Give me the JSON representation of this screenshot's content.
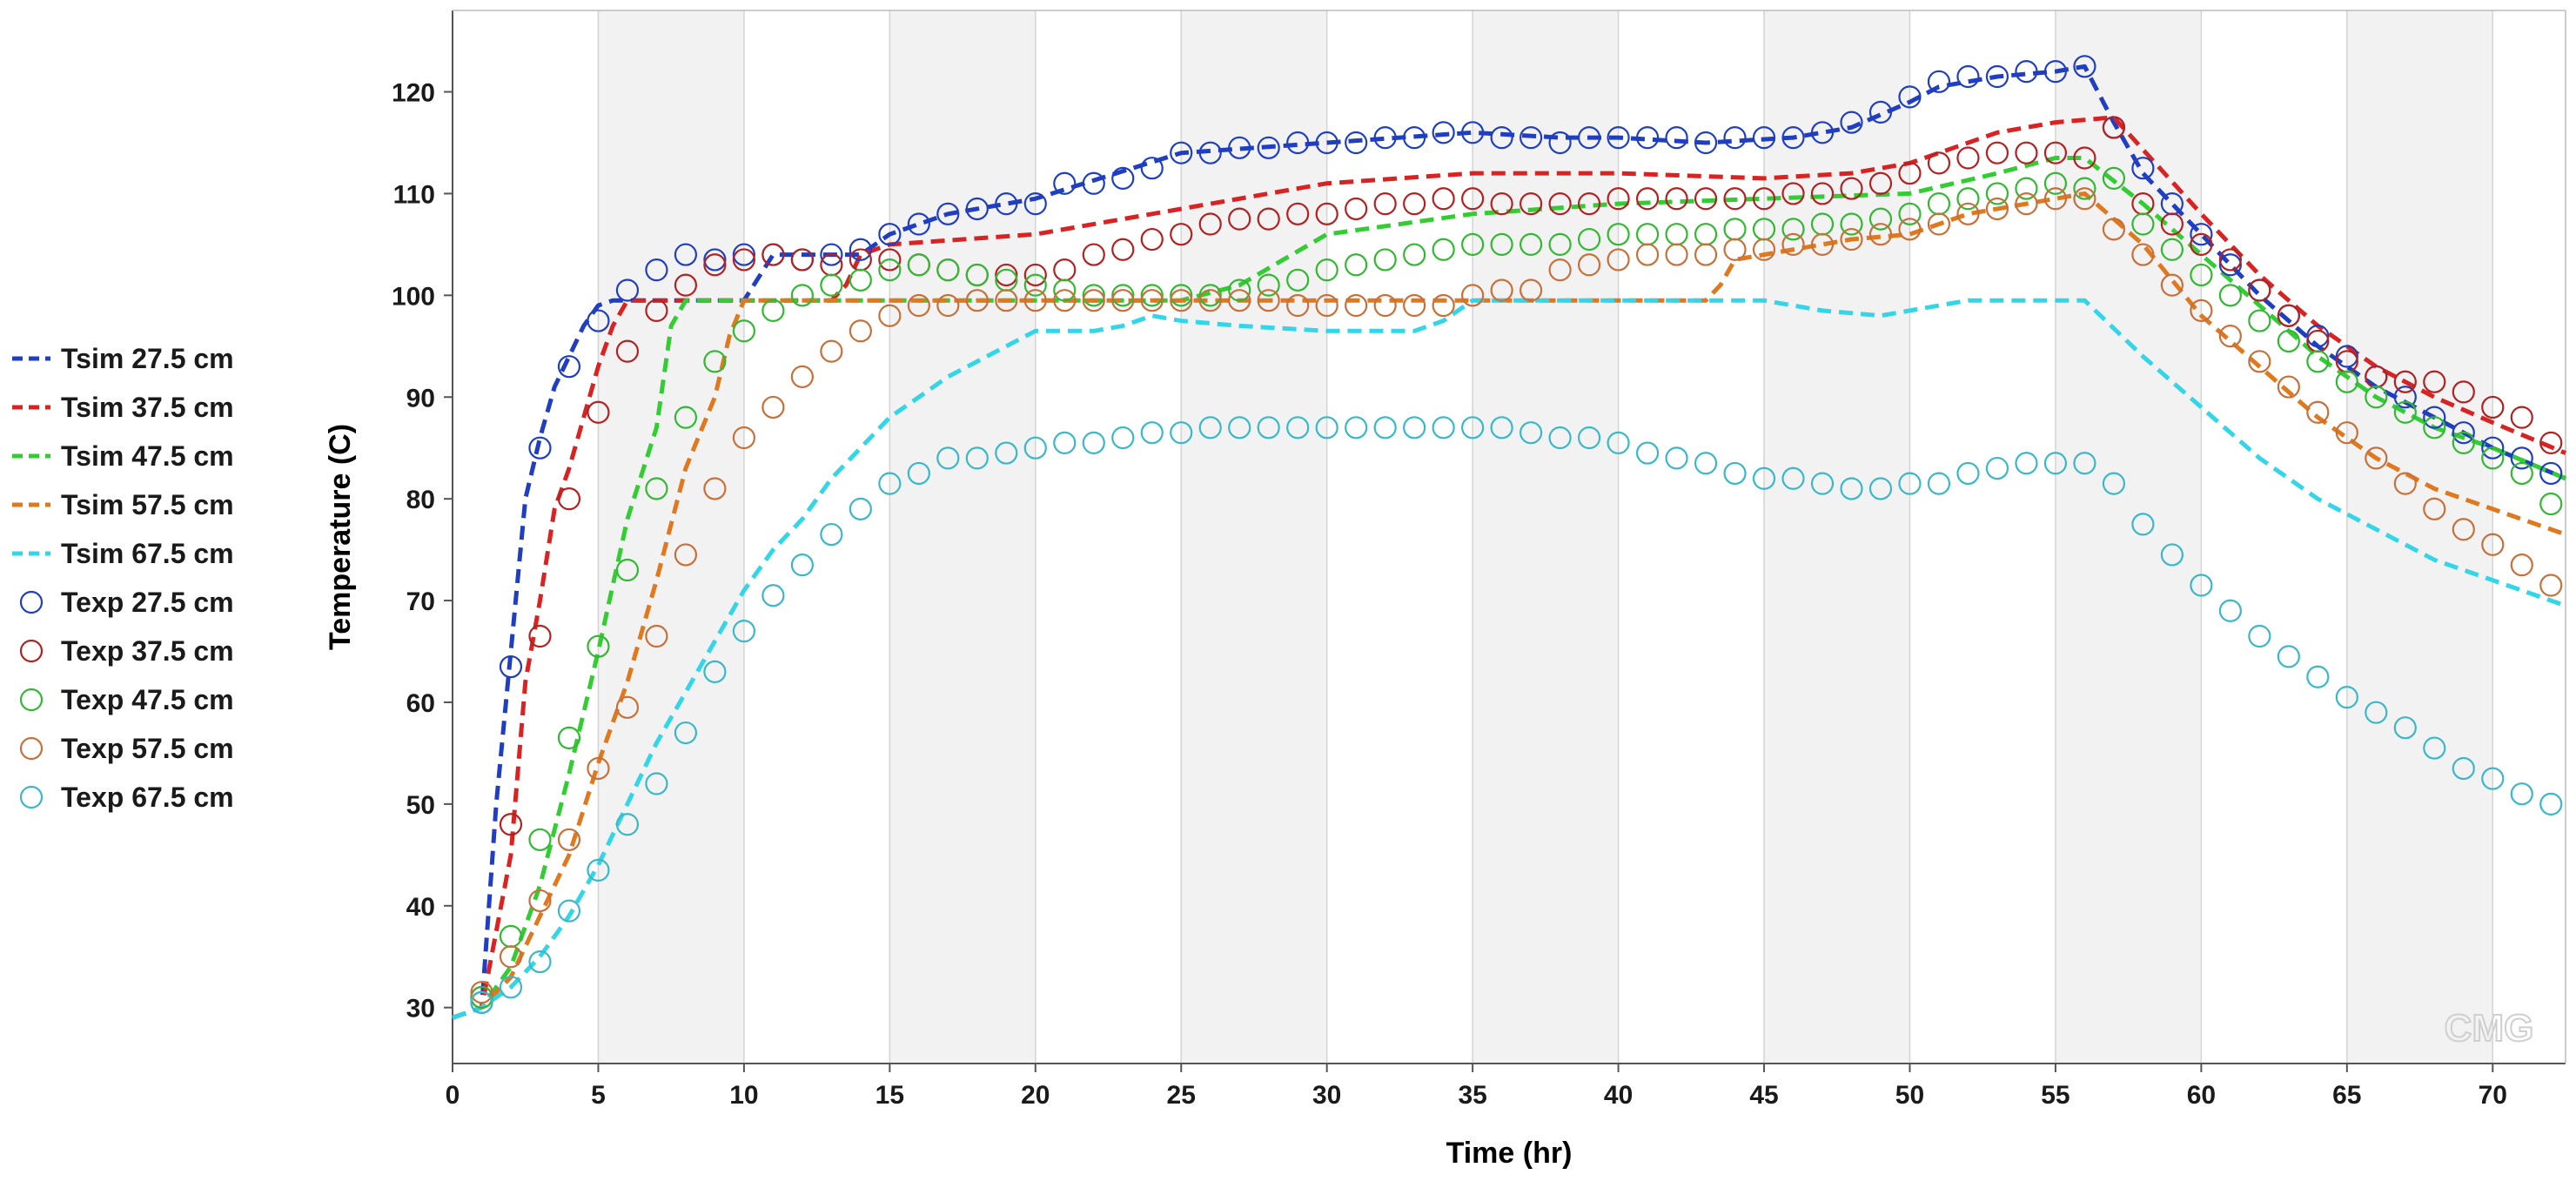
{
  "chart_data": {
    "type": "line",
    "xlabel": "Time (hr)",
    "ylabel": "Temperature (C)",
    "xlim": [
      0,
      72.5
    ],
    "ylim": [
      24.5,
      128
    ],
    "xticks": [
      0,
      5,
      10,
      15,
      20,
      25,
      30,
      35,
      40,
      45,
      50,
      55,
      60,
      65,
      70
    ],
    "yticks": [
      30,
      40,
      50,
      60,
      70,
      80,
      90,
      100,
      110,
      120
    ],
    "grid": "alternating vertical bands every 5 hr",
    "legend_position": "left",
    "watermark": "CMG",
    "series": [
      {
        "name": "Tsim 27.5 cm",
        "style": "dashed",
        "color": "#1f3ec2",
        "x": [
          0,
          1,
          1.5,
          2,
          2.5,
          3,
          3.5,
          4,
          4.5,
          5,
          5.5,
          6,
          8,
          10,
          11,
          14,
          15,
          17,
          20,
          25,
          30,
          35,
          38,
          40,
          43,
          46,
          48,
          50,
          51,
          52,
          53,
          55,
          56,
          57,
          58,
          60,
          62,
          64,
          66,
          68,
          70,
          72.5
        ],
        "y": [
          29,
          30,
          50,
          65,
          80,
          86,
          91,
          94,
          97,
          99,
          99.5,
          99.5,
          99.5,
          99.5,
          104,
          104,
          106,
          108,
          109.5,
          114,
          115,
          116,
          115.5,
          115.5,
          115,
          115.5,
          116.5,
          119,
          120.5,
          121,
          121.5,
          122,
          122.5,
          117,
          112,
          106,
          100,
          95,
          91,
          88,
          85,
          82
        ]
      },
      {
        "name": "Tsim 37.5 cm",
        "style": "dashed",
        "color": "#d92323",
        "x": [
          0,
          1,
          2,
          2.5,
          3,
          3.5,
          4,
          4.5,
          5,
          5.5,
          6,
          6.5,
          8,
          10,
          13,
          13.5,
          14,
          15,
          20,
          25,
          30,
          35,
          40,
          45,
          48,
          50,
          53,
          55,
          57,
          60,
          62,
          64,
          66,
          68,
          70,
          72.5
        ],
        "y": [
          29,
          30,
          45,
          62,
          70,
          79,
          83,
          88,
          93,
          97,
          99.5,
          99.5,
          99.5,
          99.5,
          99.5,
          101,
          104,
          105,
          106,
          108.5,
          111,
          112,
          112,
          111.5,
          112,
          113,
          116,
          117,
          117.5,
          108,
          102,
          97,
          93,
          90,
          87.5,
          84.5
        ]
      },
      {
        "name": "Tsim 47.5 cm",
        "style": "dashed",
        "color": "#33cc33",
        "x": [
          0,
          1,
          2,
          3,
          4,
          5,
          6,
          7,
          7.5,
          8,
          10,
          15,
          20,
          25,
          27,
          30,
          35,
          40,
          45,
          50,
          53,
          55,
          56,
          58,
          60,
          62,
          64,
          66,
          68,
          70,
          72.5
        ],
        "y": [
          29,
          30,
          34,
          42,
          53,
          65,
          78,
          87,
          97,
          99.5,
          99.5,
          99.5,
          99.5,
          99.5,
          101,
          106,
          108,
          109,
          109.5,
          110,
          112,
          113.5,
          113.5,
          109,
          104,
          99,
          94,
          90,
          87,
          85,
          82
        ]
      },
      {
        "name": "Tsim 57.5 cm",
        "style": "dashed",
        "color": "#e0781e",
        "x": [
          0,
          1,
          2,
          3,
          4,
          5,
          6,
          7,
          8,
          9,
          9.5,
          10,
          15,
          20,
          25,
          30,
          35,
          40,
          43,
          43.5,
          44,
          45,
          48,
          50,
          52,
          55,
          56,
          58,
          60,
          62,
          64,
          66,
          68,
          70,
          72.5
        ],
        "y": [
          29,
          30,
          33,
          39,
          45,
          54,
          62,
          72,
          83,
          90,
          96,
          99.5,
          99.5,
          99.5,
          99.5,
          99.5,
          99.5,
          99.5,
          99.5,
          101,
          103.5,
          104,
          105.5,
          106,
          108,
          109.5,
          110,
          105,
          98,
          93,
          88,
          84,
          81,
          79,
          76.5
        ]
      },
      {
        "name": "Tsim 67.5 cm",
        "style": "dashed",
        "color": "#33d6e8",
        "x": [
          0,
          1,
          2,
          3,
          4,
          5,
          6,
          7,
          8,
          9,
          10,
          11,
          12,
          13,
          14,
          15,
          17,
          19,
          20,
          22,
          23,
          24,
          25,
          27,
          30,
          33,
          34,
          35,
          40,
          45,
          47,
          49,
          50,
          52,
          55,
          56,
          58,
          60,
          62,
          64,
          66,
          68,
          70,
          72.5
        ],
        "y": [
          29,
          30,
          32,
          35,
          39,
          44,
          50,
          56,
          61,
          66,
          71,
          75,
          78,
          82,
          85,
          88,
          92,
          95,
          96.5,
          96.5,
          97,
          98,
          97.5,
          97,
          96.5,
          96.5,
          97.5,
          99.5,
          99.5,
          99.5,
          98.5,
          98,
          98.5,
          99.5,
          99.5,
          99.5,
          94,
          89,
          84,
          80,
          77,
          74,
          72,
          69.5
        ]
      },
      {
        "name": "Texp 27.5 cm",
        "style": "circles",
        "color": "#1f3ec2",
        "x": [
          1,
          2,
          3,
          4,
          5,
          6,
          7,
          8,
          9,
          10,
          11,
          12,
          13,
          14,
          15,
          16,
          17,
          18,
          19,
          20,
          21,
          22,
          23,
          24,
          25,
          26,
          27,
          28,
          29,
          30,
          31,
          32,
          33,
          34,
          35,
          36,
          37,
          38,
          39,
          40,
          41,
          42,
          43,
          44,
          45,
          46,
          47,
          48,
          49,
          50,
          51,
          52,
          53,
          54,
          55,
          56,
          57,
          58,
          59,
          60,
          61,
          62,
          63,
          64,
          65,
          66,
          67,
          68,
          69,
          70,
          71,
          72
        ],
        "y": [
          30.5,
          63.5,
          85,
          93,
          97.5,
          100.5,
          102.5,
          104,
          103.5,
          104,
          104,
          103.5,
          104,
          104.5,
          106,
          107,
          108,
          108.5,
          109,
          109,
          111,
          111,
          111.5,
          112.5,
          114,
          114,
          114.5,
          114.5,
          115,
          115,
          115,
          115.5,
          115.5,
          116,
          116,
          115.5,
          115.5,
          115,
          115.5,
          115.5,
          115.5,
          115.5,
          115,
          115.5,
          115.5,
          115.5,
          116,
          117,
          118,
          119.5,
          121,
          121.5,
          121.5,
          122,
          122,
          122.5,
          116.5,
          112.5,
          109,
          106,
          103,
          100.5,
          98,
          96,
          94,
          92,
          90,
          88,
          86.5,
          85,
          84,
          82.5
        ]
      },
      {
        "name": "Texp 37.5 cm",
        "style": "circles",
        "color": "#b22222",
        "x": [
          1,
          2,
          3,
          4,
          5,
          6,
          7,
          8,
          9,
          10,
          11,
          12,
          13,
          14,
          15,
          16,
          17,
          18,
          19,
          20,
          21,
          22,
          23,
          24,
          25,
          26,
          27,
          28,
          29,
          30,
          31,
          32,
          33,
          34,
          35,
          36,
          37,
          38,
          39,
          40,
          41,
          42,
          43,
          44,
          45,
          46,
          47,
          48,
          49,
          50,
          51,
          52,
          53,
          54,
          55,
          56,
          57,
          58,
          59,
          60,
          61,
          62,
          63,
          64,
          65,
          66,
          67,
          68,
          69,
          70,
          71,
          72
        ],
        "y": [
          31,
          48,
          66.5,
          80,
          88.5,
          94.5,
          98.5,
          101,
          103,
          103.5,
          104,
          103.5,
          103,
          103.5,
          103.5,
          103,
          102.5,
          102,
          102,
          102,
          102.5,
          104,
          104.5,
          105.5,
          106,
          107,
          107.5,
          107.5,
          108,
          108,
          108.5,
          109,
          109,
          109.5,
          109.5,
          109,
          109,
          109,
          109,
          109.5,
          109.5,
          109.5,
          109.5,
          109.5,
          109.5,
          110,
          110,
          110.5,
          111,
          112,
          113,
          113.5,
          114,
          114,
          114,
          113.5,
          116.5,
          109,
          107,
          105,
          103.5,
          100.5,
          98,
          95.5,
          93.5,
          92,
          91.5,
          91.5,
          90.5,
          89,
          88,
          85.5
        ]
      },
      {
        "name": "Texp 47.5 cm",
        "style": "circles",
        "color": "#33b833",
        "x": [
          1,
          2,
          3,
          4,
          5,
          6,
          7,
          8,
          9,
          10,
          11,
          12,
          13,
          14,
          15,
          16,
          17,
          18,
          19,
          20,
          21,
          22,
          23,
          24,
          25,
          26,
          27,
          28,
          29,
          30,
          31,
          32,
          33,
          34,
          35,
          36,
          37,
          38,
          39,
          40,
          41,
          42,
          43,
          44,
          45,
          46,
          47,
          48,
          49,
          50,
          51,
          52,
          53,
          54,
          55,
          56,
          57,
          58,
          59,
          60,
          61,
          62,
          63,
          64,
          65,
          66,
          67,
          68,
          69,
          70,
          71,
          72
        ],
        "y": [
          31,
          37,
          46.5,
          56.5,
          65.5,
          73,
          81,
          88,
          93.5,
          96.5,
          98.5,
          100,
          101,
          101.5,
          102.5,
          103,
          102.5,
          102,
          101.5,
          101,
          100.5,
          100,
          100,
          100,
          100,
          100,
          100.5,
          101,
          101.5,
          102.5,
          103,
          103.5,
          104,
          104.5,
          105,
          105,
          105,
          105,
          105.5,
          106,
          106,
          106,
          106,
          106.5,
          106.5,
          106.5,
          107,
          107,
          107.5,
          108,
          109,
          109.5,
          110,
          110.5,
          111,
          110.5,
          111.5,
          107,
          104.5,
          102,
          100,
          97.5,
          95.5,
          93.5,
          91.5,
          90,
          88.5,
          87,
          85.5,
          84,
          82.5,
          79.5
        ]
      },
      {
        "name": "Texp 57.5 cm",
        "style": "circles",
        "color": "#c8703a",
        "x": [
          1,
          2,
          3,
          4,
          5,
          6,
          7,
          8,
          9,
          10,
          11,
          12,
          13,
          14,
          15,
          16,
          17,
          18,
          19,
          20,
          21,
          22,
          23,
          24,
          25,
          26,
          27,
          28,
          29,
          30,
          31,
          32,
          33,
          34,
          35,
          36,
          37,
          38,
          39,
          40,
          41,
          42,
          43,
          44,
          45,
          46,
          47,
          48,
          49,
          50,
          51,
          52,
          53,
          54,
          55,
          56,
          57,
          58,
          59,
          60,
          61,
          62,
          63,
          64,
          65,
          66,
          67,
          68,
          69,
          70,
          71,
          72
        ],
        "y": [
          31.5,
          35,
          40.5,
          46.5,
          53.5,
          59.5,
          66.5,
          74.5,
          81,
          86,
          89,
          92,
          94.5,
          96.5,
          98,
          99,
          99,
          99.5,
          99.5,
          99.5,
          99.5,
          99.5,
          99.5,
          99.5,
          99.5,
          99.5,
          99.5,
          99.5,
          99,
          99,
          99,
          99,
          99,
          99,
          100,
          100.5,
          100.5,
          102.5,
          103,
          103.5,
          104,
          104,
          104,
          104.5,
          104.5,
          105,
          105,
          105.5,
          106,
          106.5,
          107,
          108,
          108.5,
          109,
          109.5,
          109.5,
          106.5,
          104,
          101,
          98.5,
          96,
          93.5,
          91,
          88.5,
          86.5,
          84,
          81.5,
          79,
          77,
          75.5,
          73.5,
          71.5
        ]
      },
      {
        "name": "Texp 67.5 cm",
        "style": "circles",
        "color": "#3ab8c8",
        "x": [
          1,
          2,
          3,
          4,
          5,
          6,
          7,
          8,
          9,
          10,
          11,
          12,
          13,
          14,
          15,
          16,
          17,
          18,
          19,
          20,
          21,
          22,
          23,
          24,
          25,
          26,
          27,
          28,
          29,
          30,
          31,
          32,
          33,
          34,
          35,
          36,
          37,
          38,
          39,
          40,
          41,
          42,
          43,
          44,
          45,
          46,
          47,
          48,
          49,
          50,
          51,
          52,
          53,
          54,
          55,
          56,
          57,
          58,
          59,
          60,
          61,
          62,
          63,
          64,
          65,
          66,
          67,
          68,
          69,
          70,
          71,
          72
        ],
        "y": [
          30.5,
          32,
          34.5,
          39.5,
          43.5,
          48,
          52,
          57,
          63,
          67,
          70.5,
          73.5,
          76.5,
          79,
          81.5,
          82.5,
          84,
          84,
          84.5,
          85,
          85.5,
          85.5,
          86,
          86.5,
          86.5,
          87,
          87,
          87,
          87,
          87,
          87,
          87,
          87,
          87,
          87,
          87,
          86.5,
          86,
          86,
          85.5,
          84.5,
          84,
          83.5,
          82.5,
          82,
          82,
          81.5,
          81,
          81,
          81.5,
          81.5,
          82.5,
          83,
          83.5,
          83.5,
          83.5,
          81.5,
          77.5,
          74.5,
          71.5,
          69,
          66.5,
          64.5,
          62.5,
          60.5,
          59,
          57.5,
          55.5,
          53.5,
          52.5,
          51,
          50
        ]
      }
    ]
  }
}
